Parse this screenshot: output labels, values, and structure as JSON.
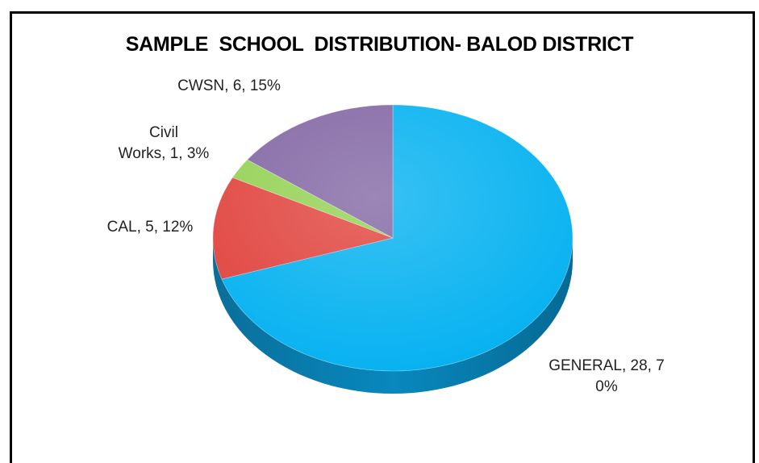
{
  "chart_data": {
    "type": "pie",
    "title": "SAMPLE  SCHOOL  DISTRIBUTION- BALOD DISTRICT",
    "slices": [
      {
        "name": "GENERAL",
        "value": 28,
        "percent": 70,
        "label_lines": [
          "GENERAL, 28, 7",
          "0%"
        ],
        "color": "#00B0F0"
      },
      {
        "name": "CAL",
        "value": 5,
        "percent": 12,
        "label_lines": [
          "CAL, 5, 12%"
        ],
        "color": "#E0403A"
      },
      {
        "name": "Civil Works",
        "value": 1,
        "percent": 3,
        "label_lines": [
          "Civil",
          "Works, 1, 3%"
        ],
        "color": "#92D050"
      },
      {
        "name": "CWSN",
        "value": 6,
        "percent": 15,
        "label_lines": [
          "CWSN, 6, 15%"
        ],
        "color": "#8064A2"
      }
    ],
    "style": "3d-tilted"
  }
}
